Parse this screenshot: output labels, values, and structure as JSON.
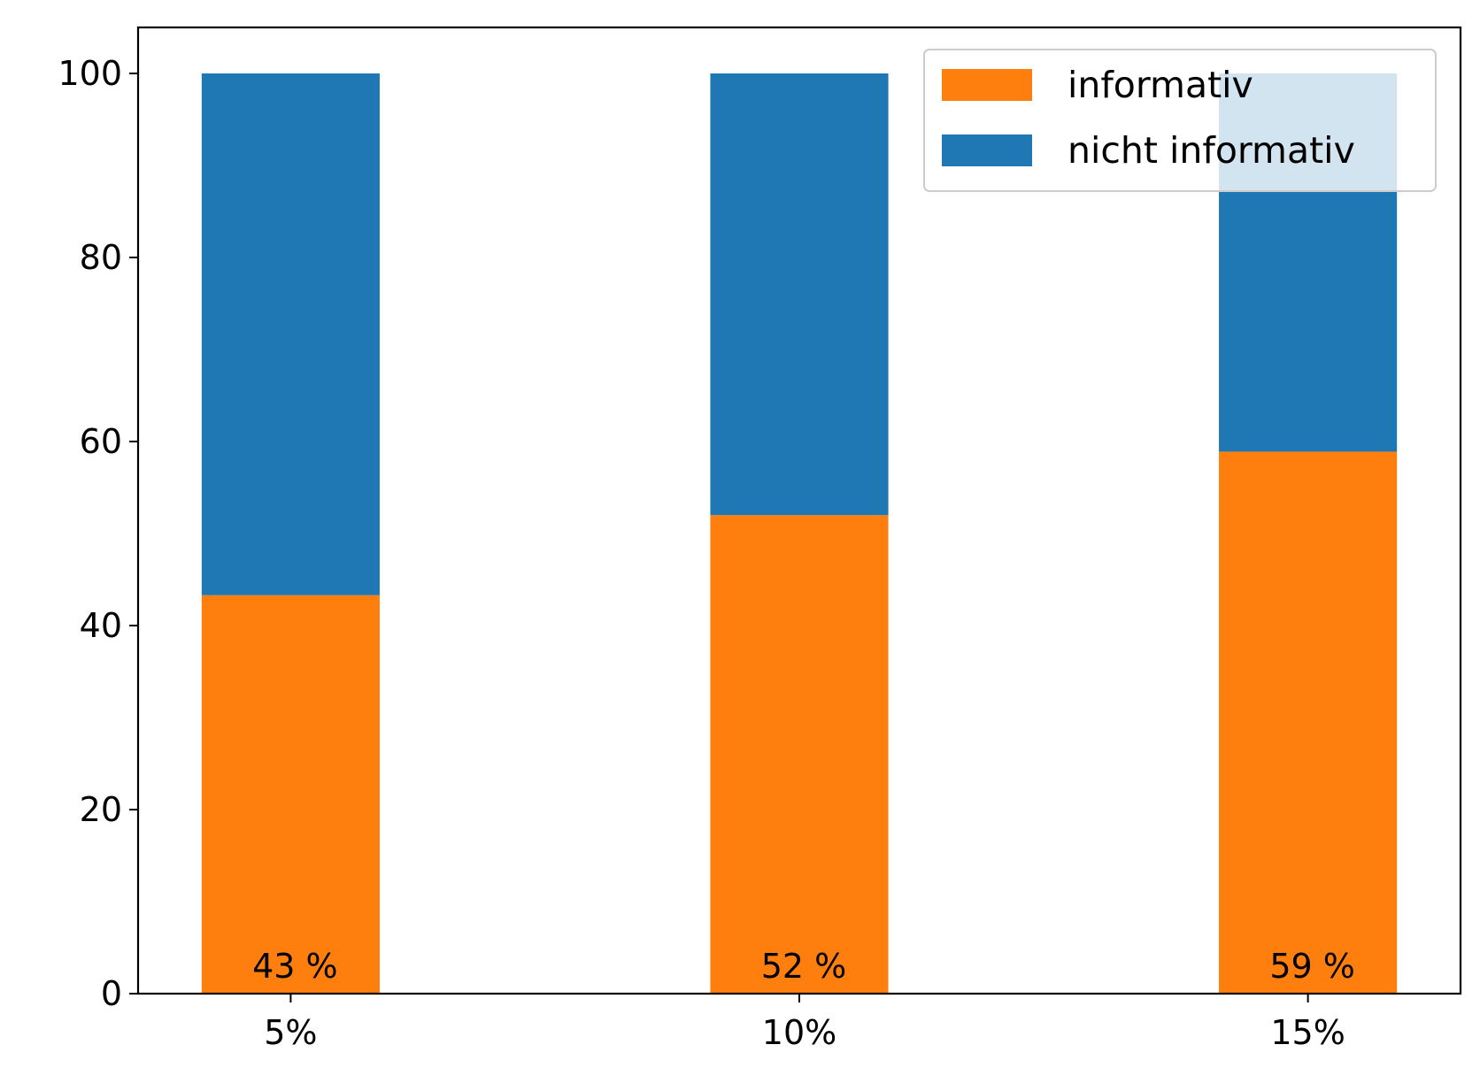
{
  "chart_data": {
    "type": "bar",
    "stacked": true,
    "categories": [
      "5%",
      "10%",
      "15%"
    ],
    "series": [
      {
        "name": "informativ",
        "color": "#ff7f0e",
        "values": [
          43.3,
          52.0,
          58.9
        ]
      },
      {
        "name": "nicht informativ",
        "color": "#1f77b4",
        "values": [
          56.7,
          48.0,
          41.1
        ]
      }
    ],
    "data_labels": [
      "43 %",
      "52 %",
      "59 %"
    ],
    "y_ticks": [
      0,
      20,
      40,
      60,
      80,
      100
    ],
    "ylim": [
      0,
      105
    ],
    "xlim": [
      -0.3,
      2.3
    ],
    "bar_width": 0.35,
    "grid": false,
    "legend_position": "top-right"
  }
}
